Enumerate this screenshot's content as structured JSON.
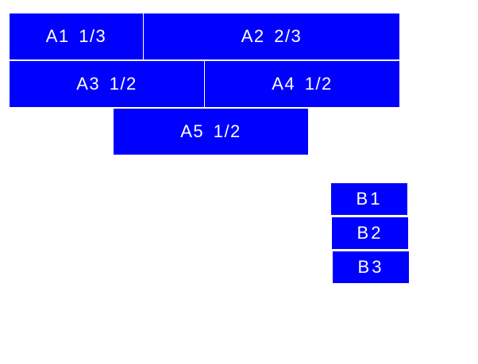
{
  "colors": {
    "box": "#0000ff",
    "text": "#ffffff"
  },
  "a_boxes": [
    {
      "label": "A1 1/3"
    },
    {
      "label": "A2 2/3"
    },
    {
      "label": "A3 1/2"
    },
    {
      "label": "A4 1/2"
    },
    {
      "label": "A5 1/2"
    }
  ],
  "b_boxes": [
    {
      "label": "B1"
    },
    {
      "label": "B2"
    },
    {
      "label": "B3"
    }
  ]
}
